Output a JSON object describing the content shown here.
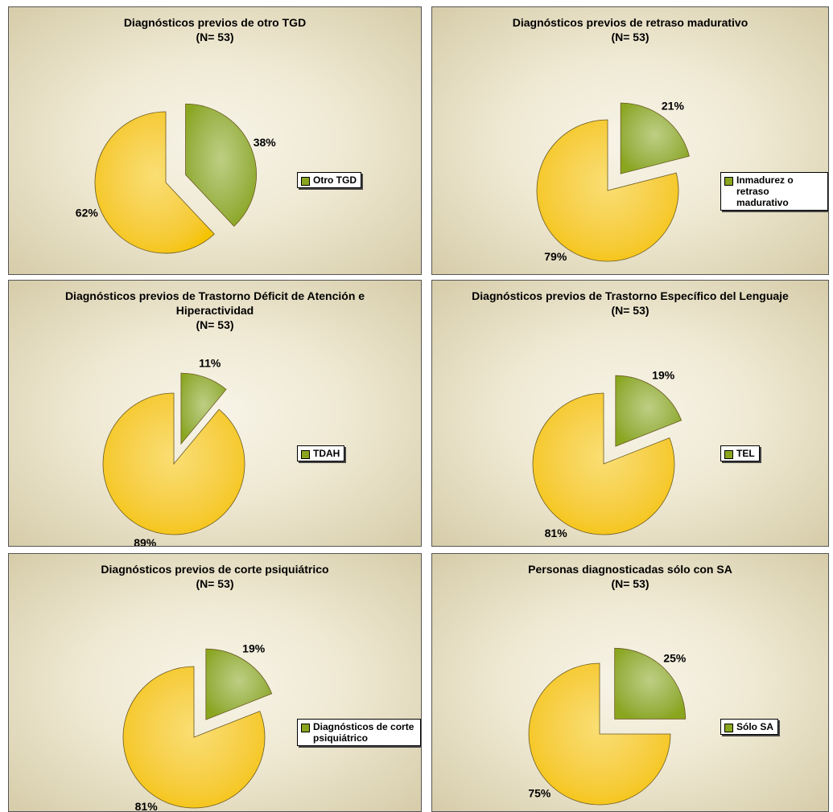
{
  "chart_data": [
    {
      "type": "pie",
      "title": "Diagnósticos previos de otro TGD",
      "subtitle": "(N= 53)",
      "categories": [
        "Otro TGD",
        null
      ],
      "values": [
        38,
        62
      ],
      "value_labels": [
        "38%",
        "62%"
      ],
      "colors": [
        "#8aa61e",
        "#f5c400"
      ]
    },
    {
      "type": "pie",
      "title": "Diagnósticos previos de retraso madurativo",
      "subtitle": "(N= 53)",
      "categories": [
        "Inmadurez o retraso madurativo",
        null
      ],
      "values": [
        21,
        79
      ],
      "value_labels": [
        "21%",
        "79%"
      ],
      "colors": [
        "#8aa61e",
        "#f5c400"
      ]
    },
    {
      "type": "pie",
      "title": "Diagnósticos previos de Trastorno Déficit de Atención e Hiperactividad",
      "subtitle": "(N= 53)",
      "categories": [
        "TDAH",
        null
      ],
      "values": [
        11,
        89
      ],
      "value_labels": [
        "11%",
        "89%"
      ],
      "colors": [
        "#8aa61e",
        "#f5c400"
      ]
    },
    {
      "type": "pie",
      "title": "Diagnósticos previos de Trastorno Específico del Lenguaje",
      "subtitle": "(N= 53)",
      "categories": [
        "TEL",
        null
      ],
      "values": [
        19,
        81
      ],
      "value_labels": [
        "19%",
        "81%"
      ],
      "colors": [
        "#8aa61e",
        "#f5c400"
      ]
    },
    {
      "type": "pie",
      "title": "Diagnósticos previos de corte psiquiátrico",
      "subtitle": "(N= 53)",
      "categories": [
        "Diagnósticos de corte psiquiátrico",
        null
      ],
      "values": [
        19,
        81
      ],
      "value_labels": [
        "19%",
        "81%"
      ],
      "colors": [
        "#8aa61e",
        "#f5c400"
      ]
    },
    {
      "type": "pie",
      "title": "Personas diagnosticadas sólo con SA",
      "subtitle": "(N= 53)",
      "categories": [
        "Sólo SA",
        null
      ],
      "values": [
        25,
        75
      ],
      "value_labels": [
        "25%",
        "75%"
      ],
      "colors": [
        "#8aa61e",
        "#f5c400"
      ]
    }
  ]
}
